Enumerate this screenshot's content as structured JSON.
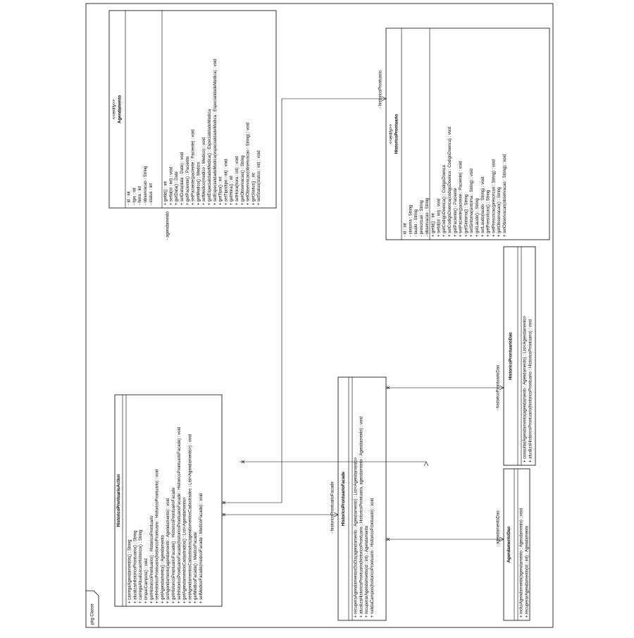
{
  "package": "pkg Classe",
  "classes": [
    {
      "stereotype": "<<entity>>",
      "name": "Agendamento",
      "attributes": [
        "- id : int",
        "- tipo : int",
        "- hora : int",
        "- observacao : String",
        "- status : int"
      ],
      "methods": [
        "+ getId() : int",
        "+ setId(id : int) : void",
        "+ getData() : Date",
        "+ setData(data : Date) : void",
        "+ getPaciente() : Paciente",
        "+ setPaciente(paciente : Paciente) : void",
        "+ getMedico() : Medico",
        "+ setMedico(medico : Medico) : void",
        "+ getEspecialidadeMedica() : EspecialidadeMedica",
        "+ setEspecialidadeMedica(especialidadeMedica : EspecialidadeMedica) : void",
        "+ getTipo() : int",
        "+ setTipo(tipo : int) : void",
        "+ getHora() : int",
        "+ setHora(hora : int) : void",
        "+ getObservacao() : String",
        "+ setObservacao(observacao : String) : void",
        "+ getStatus() : int",
        "+ setStatus(status : int) : void"
      ]
    },
    {
      "stereotype": "<<entity>>",
      "name": "HistoricoProntuario",
      "attributes": [
        "- id : int",
        "- sintoma : String",
        "- laudo : String",
        "- prescricao : String",
        "- observacao : String"
      ],
      "methods": [
        "+ getId() : int",
        "+ setId(id : int) : void",
        "+ getCodigoDoenca() : CodigoDoenca",
        "+ setCodigoDoenca(codigoDoenca : CodigoDoenca) : void",
        "+ getPaciente() : Paciente",
        "+ setPaciente(paciente : Paciente) : void",
        "+ getSintoma() : String",
        "+ setSintoma(sintoma : String) : void",
        "+ getLaudo() : String",
        "+ setLaudo(laudo : String) : void",
        "+ getPrescricao() : String",
        "+ setPrescricao(prescricao : String) : void",
        "+ getObservacao() : String",
        "+ setObservacao(observacao : String) : void"
      ]
    },
    {
      "name": "HistoricoProntuarioDao",
      "attributes": [],
      "methods": [
        "+ consultarAgendamento(agendamento : Agendamento) : List<Agendamento>",
        "+ atualizaHistoricoProntuario(historicoProntuario : HistoricoProntuario) : void"
      ]
    },
    {
      "name": "HistoricoProntuarioAction",
      "attributes": [],
      "methods": [
        "+ carregaAgendamentos() : String",
        "+ atualizarHistoricoProntuario() : String",
        "+ carregaAtualizacaoHistorico() : String",
        "+ limparCampos() : void",
        "+ getHistoricoProntuario() : HistoricoProntuario",
        "+ setHistoricoProntuario(historicoProntuario : HistoricoProntuario) : void",
        "+ getAgendamento() : Agendamento",
        "+ setAgendamento(agendamento : Agendamento) : void",
        "+ getHistoricoProntuarioFacade() : HistoricoProntuarioFacade",
        "+ setHistoricoProntuarioFacade(historicoProntuarioFacade : HistoricoProntuarioFacade) : void",
        "+ getAgendamentosCadastrados() : List<Agendamento>",
        "+ setAgendamentosCadastrados(agendamentosCadastrados : List<Agendamento>) : void",
        "+ getMedicoFacade() : MedicoFacade",
        "+ setMedicoFacade(medicoFacade : MedicoFacade) : void"
      ]
    },
    {
      "name": "HistoricoProntuarioFacade",
      "attributes": [],
      "methods": [
        "+ recuperaAgendamentosDoDia(agendamento : Agendamento) : List<Agendamento>",
        "+ atualizaHistoricoProntuario(historicoProntuario : HistoricoProntuario, agendamento : Agendamento) : void",
        "+ recuperarAgendamento(id : int) : Agendamento",
        "+ validaCampos(historicoProntuario : HistoricoProntuario) : void"
      ]
    },
    {
      "name": "AgendamentoDao",
      "attributes": [],
      "methods": [
        "+ incluiAgendamento(agendamento : Agendamento) : void",
        "+ recuperarAgendamento(id : int) : Agendamento"
      ]
    }
  ],
  "associations": [
    {
      "label": "- agendamento"
    },
    {
      "label": "- historicoProntuario"
    },
    {
      "label": "- historicoProntuarioFacade"
    },
    {
      "label": "- historicoProntuarioDao"
    },
    {
      "label": "- agendamentoDao"
    }
  ]
}
